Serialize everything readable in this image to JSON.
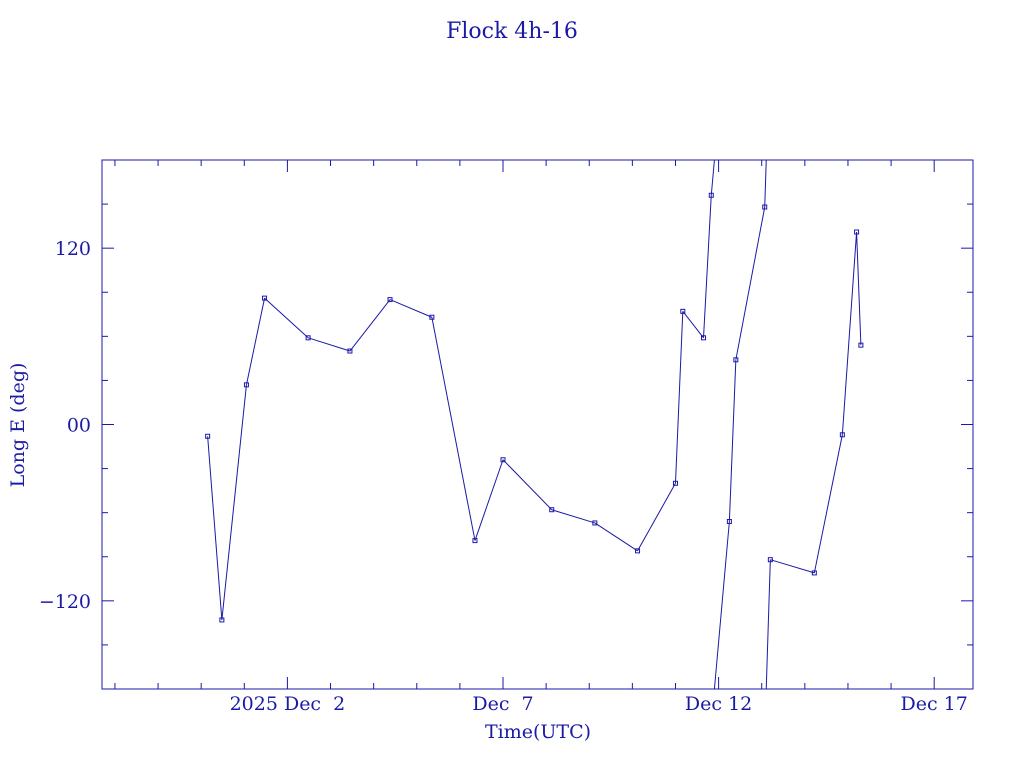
{
  "chart_data": {
    "type": "line",
    "title": "Flock 4h-16",
    "xlabel": "Time(UTC)",
    "ylabel": "Long E (deg)",
    "colors": {
      "axis": "#1a1aa6",
      "series": "#1a1aa6"
    },
    "xlim": [
      -2.3,
      17.9
    ],
    "ylim": [
      -180,
      180
    ],
    "x_unit": "days after 2025 Dec 0",
    "x_ticks": [
      {
        "x": 2,
        "label": "2025 Dec  2"
      },
      {
        "x": 7,
        "label": "Dec  7"
      },
      {
        "x": 12,
        "label": "Dec 12"
      },
      {
        "x": 17,
        "label": "Dec 17"
      }
    ],
    "y_ticks": [
      {
        "y": 120,
        "label": "120"
      },
      {
        "y": 0,
        "label": "00"
      },
      {
        "y": -120,
        "label": "−120"
      }
    ],
    "series": [
      {
        "points": [
          [
            0.15,
            -8
          ],
          [
            0.48,
            -133
          ],
          [
            1.05,
            27
          ],
          [
            1.47,
            86
          ],
          [
            2.48,
            59
          ],
          [
            3.45,
            50
          ],
          [
            4.38,
            85
          ],
          [
            5.35,
            73
          ],
          [
            6.35,
            -79
          ],
          [
            7.0,
            -24
          ],
          [
            8.13,
            -58
          ],
          [
            9.13,
            -67
          ],
          [
            10.12,
            -86
          ],
          [
            11.0,
            -40
          ],
          [
            11.17,
            77
          ],
          [
            11.65,
            59
          ],
          [
            11.83,
            156
          ],
          [
            12.25,
            -66
          ],
          [
            12.4,
            44
          ],
          [
            13.07,
            148
          ],
          [
            13.2,
            -92
          ],
          [
            14.22,
            -101
          ],
          [
            14.87,
            -7
          ],
          [
            15.2,
            131
          ],
          [
            15.3,
            54
          ]
        ],
        "wrap_segments": [
          [
            11.83,
            12.25
          ],
          [
            13.07,
            13.2
          ]
        ]
      }
    ]
  }
}
